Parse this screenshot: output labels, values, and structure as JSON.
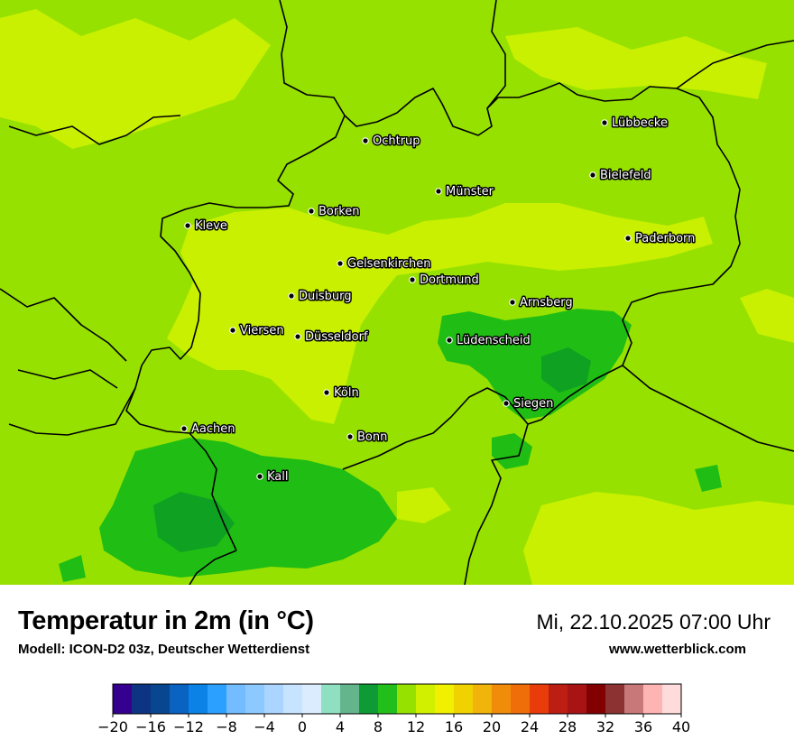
{
  "title": "Temperatur in 2m (in °C)",
  "model": "Modell: ICON-D2 03z, Deutscher Wetterdienst",
  "datetime": "Mi, 22.10.2025 07:00 Uhr",
  "website": "www.wetterblick.com",
  "map": {
    "colors": {
      "t8_10": "#0ea122",
      "t10_12": "#20bd14",
      "t12_14": "#96e100",
      "t14_16": "#c8f000"
    },
    "cities": [
      {
        "name": "Lübbecke"
      },
      {
        "name": "Ochtrup"
      },
      {
        "name": "Bielefeld"
      },
      {
        "name": "Münster"
      },
      {
        "name": "Borken"
      },
      {
        "name": "Kleve"
      },
      {
        "name": "Paderborn"
      },
      {
        "name": "Gelsenkirchen"
      },
      {
        "name": "Dortmund"
      },
      {
        "name": "Duisburg"
      },
      {
        "name": "Arnsberg"
      },
      {
        "name": "Viersen"
      },
      {
        "name": "Düsseldorf"
      },
      {
        "name": "Lüdenscheid"
      },
      {
        "name": "Köln"
      },
      {
        "name": "Siegen"
      },
      {
        "name": "Aachen"
      },
      {
        "name": "Bonn"
      },
      {
        "name": "Kall"
      }
    ]
  },
  "legend": {
    "ticks": [
      "−20",
      "−16",
      "−12",
      "−8",
      "−4",
      "0",
      "4",
      "8",
      "12",
      "16",
      "20",
      "24",
      "28",
      "32",
      "36",
      "40"
    ],
    "colors": [
      "#35008f",
      "#0d3483",
      "#08468f",
      "#0a62c1",
      "#0a82e6",
      "#2ba0ff",
      "#73bcff",
      "#8cc9ff",
      "#abd5ff",
      "#c6e4ff",
      "#dcecff",
      "#8ee0c0",
      "#64b48c",
      "#0e9a34",
      "#22be1c",
      "#96e100",
      "#d0f000",
      "#f0f000",
      "#f0d200",
      "#f0b40a",
      "#f08c0a",
      "#f06e0a",
      "#e83c0a",
      "#bc1e14",
      "#a81414",
      "#820000",
      "#8c3232",
      "#c87878",
      "#ffb4b4",
      "#ffdcdc"
    ]
  }
}
